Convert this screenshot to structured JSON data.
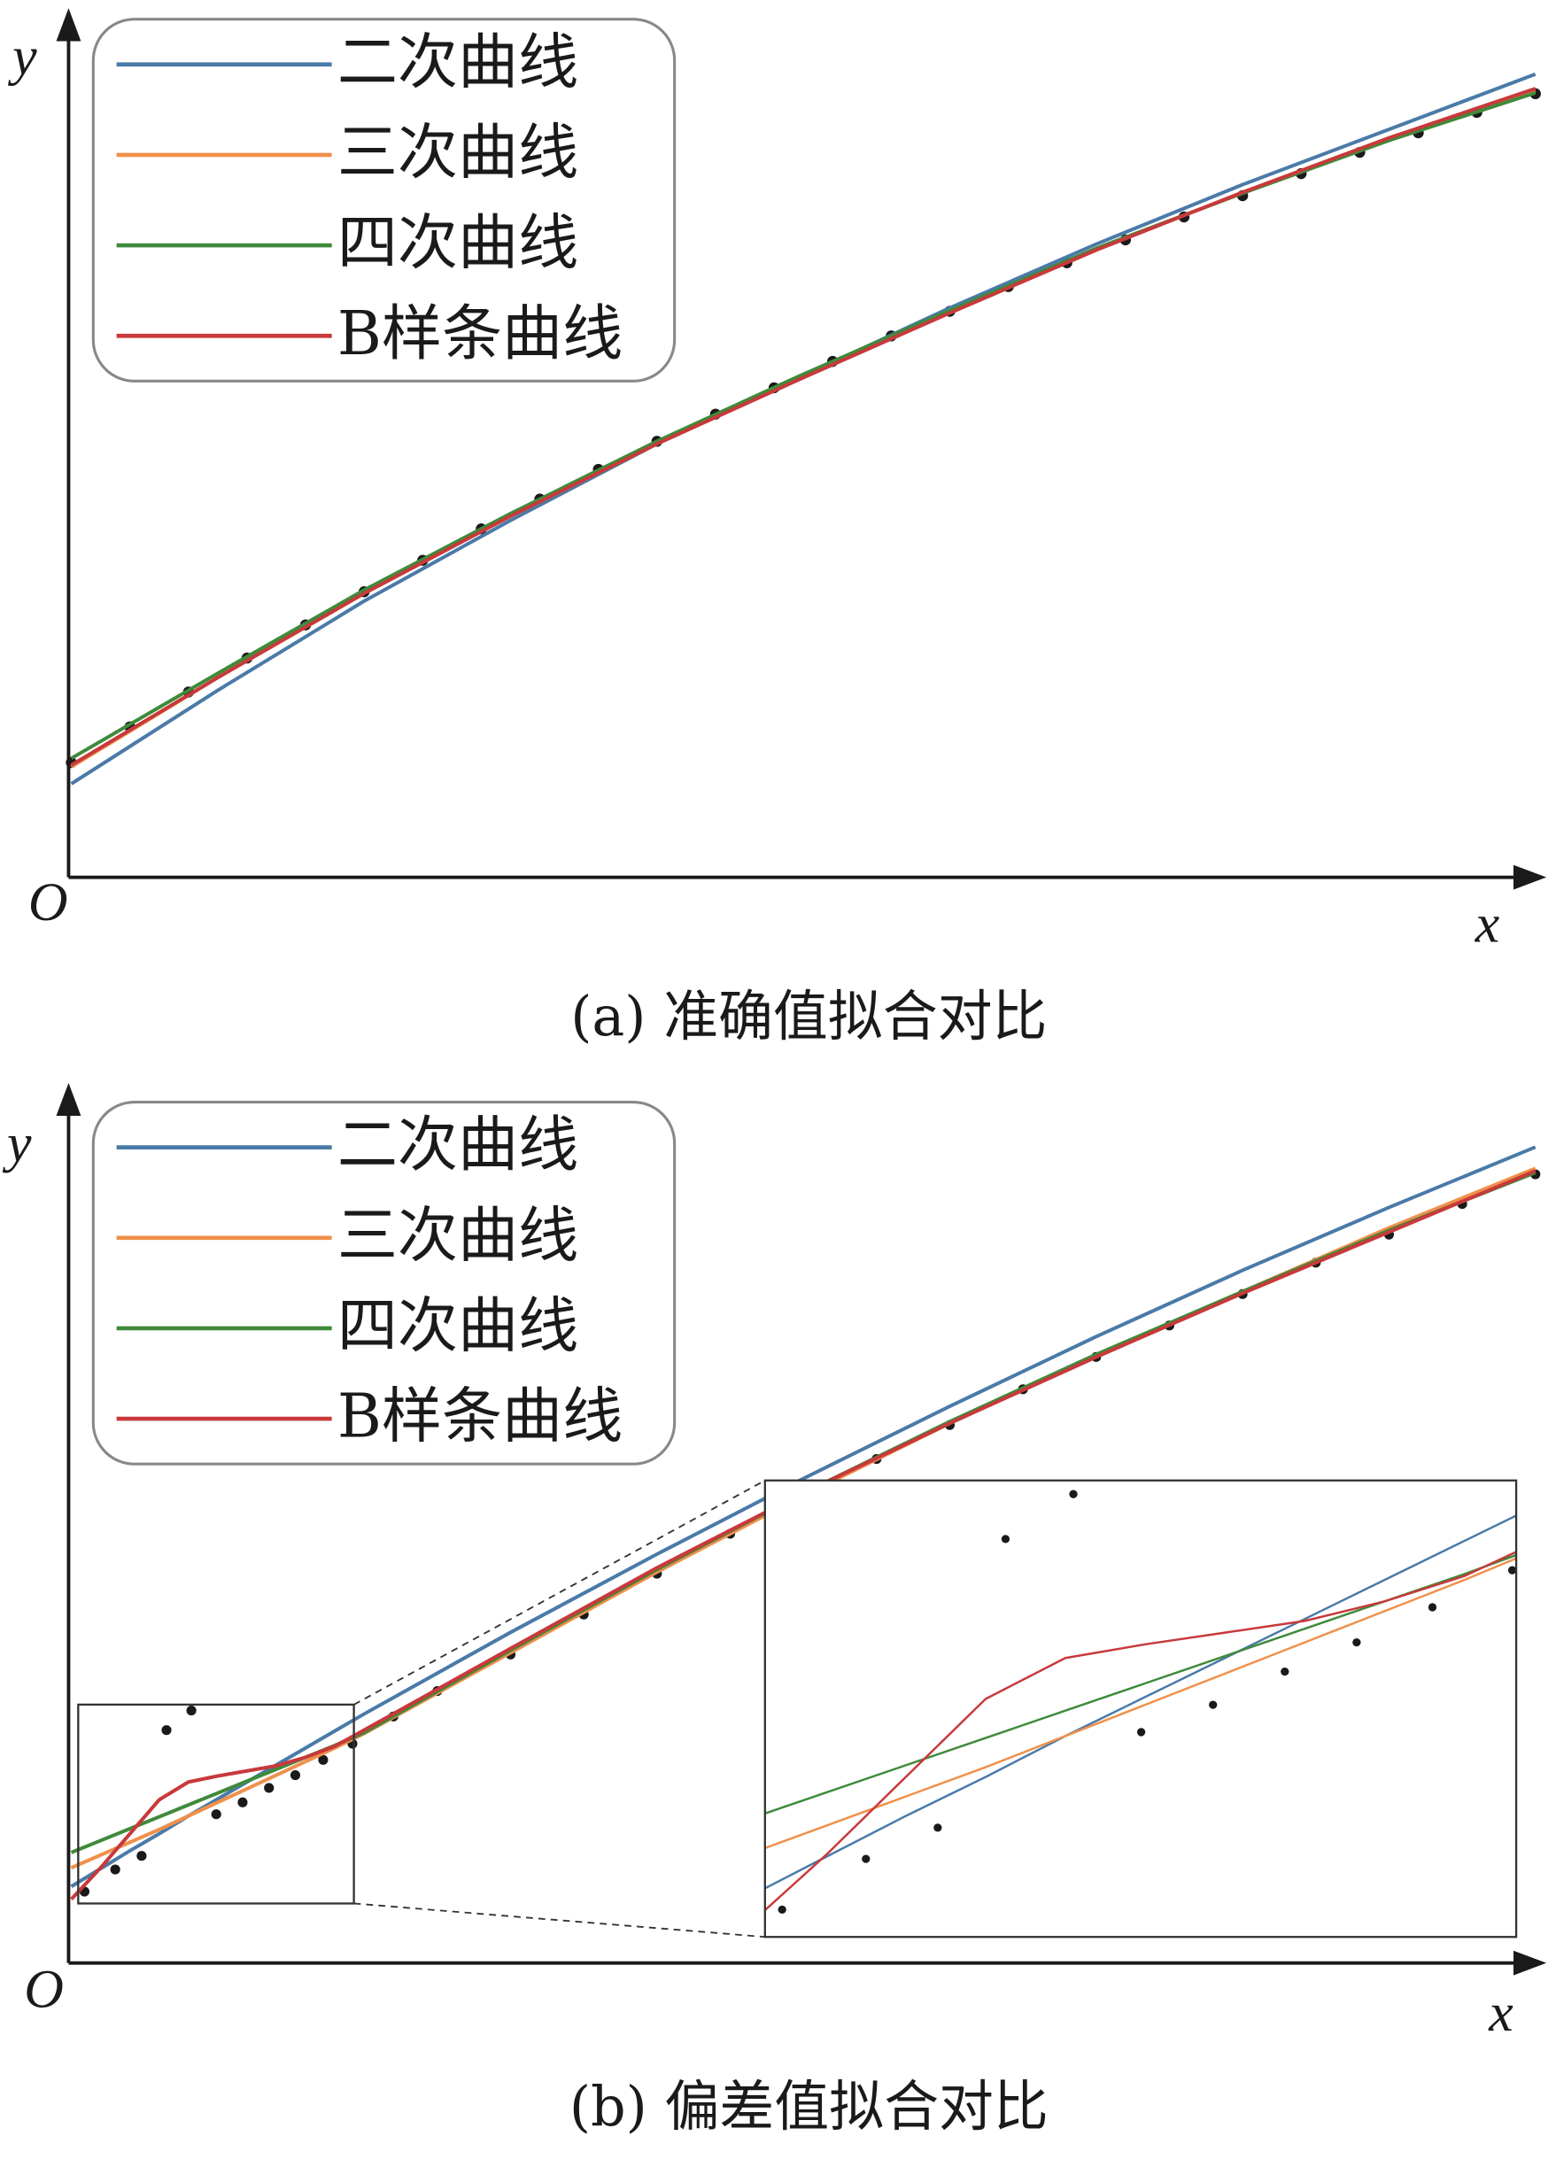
{
  "chart_data": [
    {
      "type": "line",
      "caption": "(a) 准确值拟合对比",
      "x_label": "x",
      "y_label": "y",
      "origin_label": "O",
      "legend": "upper left",
      "xlim": [
        0,
        100
      ],
      "ylim": [
        0,
        100
      ],
      "x": [
        0,
        10,
        20,
        30,
        40,
        50,
        60,
        70,
        80,
        90,
        100
      ],
      "series": [
        {
          "name": "二次曲线",
          "color": "#4a7aa8",
          "values": [
            11,
            22,
            32.5,
            42,
            51,
            59,
            67,
            74.5,
            81.5,
            88,
            94.5
          ]
        },
        {
          "name": "三次曲线",
          "color": "#f0904a",
          "values": [
            13,
            23.5,
            33.5,
            42.5,
            51,
            59,
            66.5,
            74,
            80.5,
            87,
            92.5
          ]
        },
        {
          "name": "四次曲线",
          "color": "#3f8a3a",
          "values": [
            14,
            24,
            33.8,
            42.8,
            51.3,
            59.2,
            66.7,
            74,
            80.5,
            86.7,
            92.3
          ]
        },
        {
          "name": "B样条曲线",
          "color": "#c8393b",
          "values": [
            13.2,
            23.5,
            33.4,
            42.5,
            51,
            58.8,
            66.4,
            73.8,
            80.6,
            87,
            92.8
          ]
        }
      ],
      "scatter": {
        "color": "#1a1a1a",
        "x": [
          0,
          4,
          8,
          12,
          16,
          20,
          24,
          28,
          32,
          36,
          40,
          44,
          48,
          52,
          56,
          60,
          64,
          68,
          72,
          76,
          80,
          84,
          88,
          92,
          96,
          100
        ],
        "y": [
          13.5,
          17.7,
          21.8,
          25.8,
          29.7,
          33.6,
          37.3,
          41,
          44.5,
          48,
          51.3,
          54.5,
          57.6,
          60.7,
          63.7,
          66.6,
          69.5,
          72.3,
          75,
          77.7,
          80.2,
          82.8,
          85.3,
          87.6,
          90,
          92.2
        ]
      }
    },
    {
      "type": "line",
      "caption": "(b) 偏差值拟合对比",
      "x_label": "x",
      "y_label": "y",
      "origin_label": "O",
      "legend": "upper left",
      "xlim": [
        0,
        100
      ],
      "ylim": [
        0,
        100
      ],
      "x": [
        0,
        2,
        4,
        6,
        8,
        10,
        12,
        14,
        16,
        18,
        20,
        30,
        40,
        50,
        60,
        70,
        80,
        90,
        100
      ],
      "series": [
        {
          "name": "二次曲线",
          "color": "#4a7aa8",
          "values": [
            9,
            11.1,
            13.2,
            15.2,
            17.3,
            19.3,
            21.3,
            23.3,
            25.3,
            27.3,
            29.3,
            38.9,
            48.1,
            57,
            65.5,
            73.7,
            81.5,
            88.9,
            96
          ]
        },
        {
          "name": "三次曲线",
          "color": "#f0904a",
          "values": [
            11.2,
            12.7,
            14.2,
            15.7,
            17.3,
            18.9,
            20.5,
            22.1,
            23.7,
            25.3,
            27,
            36.5,
            46,
            55,
            63.5,
            71.5,
            79,
            86.5,
            93.5
          ]
        },
        {
          "name": "四次曲线",
          "color": "#3f8a3a",
          "values": [
            13,
            14.4,
            15.8,
            17.2,
            18.6,
            20,
            21.4,
            22.8,
            24.2,
            25.6,
            27.1,
            36.8,
            46.3,
            55.3,
            63.7,
            71.6,
            79,
            86.2,
            93
          ]
        },
        {
          "name": "B样条曲线",
          "color": "#c8393b",
          "values": [
            7.5,
            11.2,
            15.2,
            19.2,
            21.3,
            22,
            22.6,
            23.2,
            24.2,
            25.5,
            27.4,
            37,
            46.5,
            55.3,
            63.5,
            71.3,
            78.8,
            86,
            93.2
          ]
        }
      ],
      "scatter": {
        "color": "#1a1a1a",
        "x": [
          0.9,
          3,
          4.8,
          6.5,
          8.2,
          9.9,
          11.7,
          13.5,
          15.3,
          17.2,
          19.2,
          22,
          25,
          30,
          35,
          40,
          45,
          50,
          55,
          60,
          65,
          70,
          75,
          80,
          85,
          90,
          95,
          100
        ],
        "y": [
          8.4,
          11,
          12.6,
          27.4,
          29.7,
          17.5,
          18.9,
          20.6,
          22.1,
          23.9,
          25.8,
          29,
          32,
          36.3,
          41,
          45.8,
          50.5,
          55,
          59.3,
          63.3,
          67.5,
          71.3,
          75,
          78.7,
          82.4,
          85.7,
          89.3,
          92.8
        ]
      },
      "inset": {
        "xlim": [
          0.47,
          19.3
        ],
        "ylim": [
          7,
          30.4
        ]
      }
    }
  ]
}
